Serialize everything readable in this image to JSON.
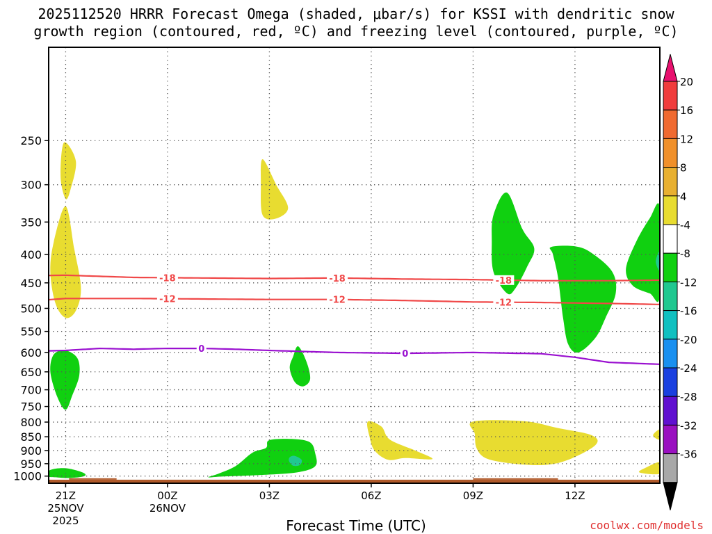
{
  "title_line1": "2025112520 HRRR Forecast Omega (shaded, μbar/s) for KSSI with dendritic snow",
  "title_line2": "growth region (contoured, red, ºC) and freezing level (contoured, purple, ºC)",
  "credit": "coolwx.com/models",
  "chart_data": {
    "type": "time-height cross-section",
    "xlabel": "Forecast Time (UTC)",
    "ylabel": "",
    "xlim_hours": [
      -0.5,
      17.5
    ],
    "ylim_hpa": [
      1030,
      170
    ],
    "y_ticks": [
      250,
      300,
      350,
      400,
      450,
      500,
      550,
      600,
      650,
      700,
      750,
      800,
      850,
      900,
      950,
      1000
    ],
    "x_ticks": [
      {
        "hour": 0,
        "label": [
          "21Z",
          "25NOV",
          "2025"
        ]
      },
      {
        "hour": 3,
        "label": [
          "00Z",
          "26NOV"
        ]
      },
      {
        "hour": 6,
        "label": [
          "03Z"
        ]
      },
      {
        "hour": 9,
        "label": [
          "06Z"
        ]
      },
      {
        "hour": 12,
        "label": [
          "09Z"
        ]
      },
      {
        "hour": 15,
        "label": [
          "12Z"
        ]
      }
    ],
    "colorbar": {
      "labels": [
        "20",
        "16",
        "12",
        "8",
        "4",
        "-4",
        "-8",
        "-12",
        "-16",
        "-20",
        "-24",
        "-28",
        "-32",
        "-36"
      ],
      "colors": [
        "#e8106e",
        "#f03c3c",
        "#f06a30",
        "#f0902a",
        "#e8b030",
        "#e8dc30",
        "#ffffff",
        "#10d010",
        "#20c890",
        "#10c0c0",
        "#1a90f0",
        "#1a40e0",
        "#6010d0",
        "#9a10c0",
        "#a8a8a8",
        "#000000"
      ]
    },
    "omega_regions": [
      {
        "level": "4 to 8",
        "color": "#e8dc30",
        "pts": [
          [
            -0.05,
            252
          ],
          [
            0.3,
            272
          ],
          [
            0.15,
            305
          ],
          [
            0,
            318
          ],
          [
            -0.15,
            290
          ]
        ]
      },
      {
        "level": "4 to 8",
        "color": "#e8dc30",
        "pts": [
          [
            0,
            328
          ],
          [
            0.25,
            390
          ],
          [
            0.45,
            460
          ],
          [
            0.3,
            505
          ],
          [
            0,
            520
          ],
          [
            -0.3,
            490
          ],
          [
            -0.45,
            430
          ],
          [
            -0.35,
            380
          ]
        ]
      },
      {
        "level": "4 to 8",
        "color": "#e8dc30",
        "pts": [
          [
            5.8,
            270
          ],
          [
            6.2,
            300
          ],
          [
            6.55,
            330
          ],
          [
            6.2,
            345
          ],
          [
            5.8,
            340
          ],
          [
            5.75,
            300
          ]
        ]
      },
      {
        "level": "4 to 8",
        "color": "#e8dc30",
        "pts": [
          [
            8.9,
            798
          ],
          [
            9.3,
            815
          ],
          [
            9.55,
            860
          ],
          [
            10.3,
            900
          ],
          [
            10.8,
            932
          ],
          [
            10,
            928
          ],
          [
            9.5,
            935
          ],
          [
            9.1,
            900
          ],
          [
            8.95,
            850
          ]
        ]
      },
      {
        "level": "4 to 8",
        "color": "#e8dc30",
        "pts": [
          [
            12,
            798
          ],
          [
            13.5,
            797
          ],
          [
            14.5,
            820
          ],
          [
            15.5,
            845
          ],
          [
            15.6,
            880
          ],
          [
            14.8,
            935
          ],
          [
            14.1,
            955
          ],
          [
            13.2,
            950
          ],
          [
            12.4,
            930
          ],
          [
            12.1,
            890
          ],
          [
            12.05,
            840
          ]
        ]
      },
      {
        "level": "4 to 8",
        "color": "#e8dc30",
        "pts": [
          [
            17.5,
            825
          ],
          [
            17.3,
            845
          ],
          [
            17.5,
            860
          ]
        ]
      },
      {
        "level": "4 to 8",
        "color": "#e8dc30",
        "pts": [
          [
            17.5,
            945
          ],
          [
            17.1,
            965
          ],
          [
            16.9,
            985
          ],
          [
            17.5,
            990
          ]
        ]
      },
      {
        "level": "-4 to -8",
        "color": "#10d010",
        "pts": [
          [
            0,
            595
          ],
          [
            0.35,
            615
          ],
          [
            0.4,
            660
          ],
          [
            0.2,
            715
          ],
          [
            0,
            760
          ],
          [
            -0.25,
            720
          ],
          [
            -0.45,
            650
          ],
          [
            -0.35,
            605
          ]
        ]
      },
      {
        "level": "-4 to -8",
        "color": "#10d010",
        "pts": [
          [
            6,
            862
          ],
          [
            6.7,
            858
          ],
          [
            7.2,
            870
          ],
          [
            7.35,
            910
          ],
          [
            7.35,
            960
          ],
          [
            6.8,
            985
          ],
          [
            5.8,
            995
          ],
          [
            4.6,
            1002
          ],
          [
            4.2,
            1005
          ],
          [
            4.5,
            990
          ],
          [
            5,
            960
          ],
          [
            5.5,
            908
          ],
          [
            5.9,
            890
          ]
        ]
      },
      {
        "level": "-4 to -8",
        "color": "#10d010",
        "pts": [
          [
            6.85,
            585
          ],
          [
            7.1,
            625
          ],
          [
            7.2,
            670
          ],
          [
            7,
            690
          ],
          [
            6.75,
            678
          ],
          [
            6.6,
            640
          ],
          [
            6.7,
            610
          ]
        ]
      },
      {
        "level": "-4 to -8",
        "color": "#10d010",
        "pts": [
          [
            13,
            310
          ],
          [
            13.45,
            360
          ],
          [
            13.8,
            390
          ],
          [
            13.6,
            420
          ],
          [
            13.25,
            460
          ],
          [
            13,
            470
          ],
          [
            12.6,
            430
          ],
          [
            12.55,
            380
          ],
          [
            12.6,
            340
          ]
        ]
      },
      {
        "level": "-4 to -8",
        "color": "#10d010",
        "pts": [
          [
            14.3,
            388
          ],
          [
            15,
            387
          ],
          [
            15.5,
            398
          ],
          [
            16.1,
            430
          ],
          [
            16.2,
            470
          ],
          [
            15.9,
            520
          ],
          [
            15.6,
            565
          ],
          [
            15.1,
            600
          ],
          [
            14.8,
            580
          ],
          [
            14.65,
            520
          ],
          [
            14.5,
            440
          ],
          [
            14.35,
            400
          ]
        ]
      },
      {
        "level": "-4 to -8",
        "color": "#10d010",
        "pts": [
          [
            17.5,
            330
          ],
          [
            17.2,
            345
          ],
          [
            16.8,
            380
          ],
          [
            16.5,
            425
          ],
          [
            16.7,
            455
          ],
          [
            17.2,
            470
          ],
          [
            17.5,
            475
          ]
        ]
      },
      {
        "level": "-4 to -8",
        "color": "#10d010",
        "pts": [
          [
            -0.55,
            1000
          ],
          [
            -0.45,
            975
          ],
          [
            0,
            968
          ],
          [
            0.5,
            985
          ],
          [
            0.55,
            1000
          ],
          [
            0.1,
            1008
          ],
          [
            -0.3,
            1005
          ]
        ]
      },
      {
        "level": "-8 to -12",
        "color": "#20c890",
        "pts": [
          [
            6.75,
            920
          ],
          [
            6.95,
            935
          ],
          [
            6.9,
            955
          ],
          [
            6.7,
            958
          ],
          [
            6.58,
            940
          ],
          [
            6.6,
            925
          ]
        ]
      },
      {
        "level": "-8 to -12",
        "color": "#20c890",
        "pts": [
          [
            17.5,
            395
          ],
          [
            17.38,
            412
          ],
          [
            17.5,
            428
          ]
        ]
      }
    ],
    "red_contours": [
      {
        "label": "-18",
        "hours": [
          -1,
          0,
          2,
          4,
          6,
          8,
          10,
          12,
          14,
          16,
          17.5
        ],
        "p": [
          437,
          436,
          440,
          441,
          442,
          441,
          443,
          444,
          446,
          446,
          445
        ],
        "label_hours": [
          3,
          8,
          12.9
        ]
      },
      {
        "label": "-12",
        "hours": [
          -1,
          0,
          2,
          4,
          6,
          8,
          10,
          12,
          14,
          16,
          17.5
        ],
        "p": [
          485,
          480,
          480,
          481,
          482,
          482,
          484,
          487,
          488,
          490,
          492
        ],
        "label_hours": [
          3,
          8,
          12.9
        ]
      }
    ],
    "purple_contours": [
      {
        "label": "0",
        "hours": [
          -1,
          0,
          1,
          2,
          3,
          4,
          5,
          6,
          8,
          10,
          12,
          14,
          15,
          16,
          17.5
        ],
        "p": [
          597,
          595,
          590,
          592,
          590,
          590,
          592,
          595,
          600,
          602,
          600,
          603,
          612,
          625,
          630
        ],
        "label_hours": [
          4,
          10
        ]
      }
    ],
    "terrain_hpa": 1015
  }
}
